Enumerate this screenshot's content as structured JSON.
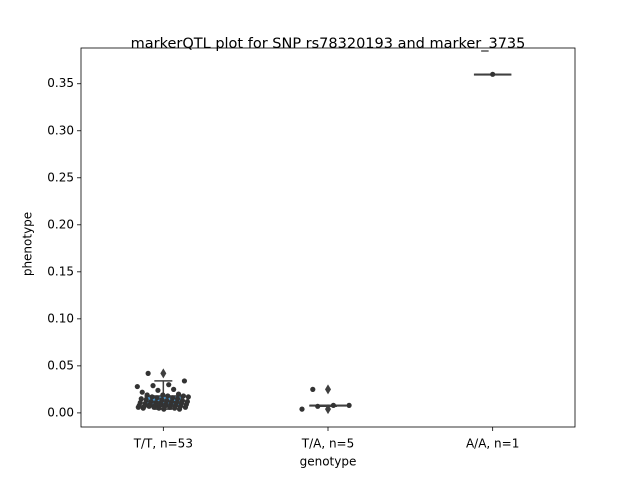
{
  "chart_data": {
    "type": "box",
    "title": "markerQTL plot for SNP rs78320193 and marker_3735",
    "xlabel": "genotype",
    "ylabel": "phenotype",
    "categories": [
      "T/T, n=53",
      "T/A, n=5",
      "A/A, n=1"
    ],
    "ylim": [
      -0.015,
      0.388
    ],
    "yticks": [
      {
        "value": 0,
        "label": "0.00"
      },
      {
        "value": 0.05,
        "label": "0.05"
      },
      {
        "value": 0.1,
        "label": "0.10"
      },
      {
        "value": 0.15,
        "label": "0.15"
      },
      {
        "value": 0.2,
        "label": "0.20"
      },
      {
        "value": 0.25,
        "label": "0.25"
      },
      {
        "value": 0.3,
        "label": "0.30"
      },
      {
        "value": 0.35,
        "label": "0.35"
      }
    ],
    "boxes": [
      {
        "color": "#4a9bd4",
        "whislo": 0.004,
        "q1": 0.007,
        "median": 0.012,
        "q3": 0.018,
        "whishi": 0.034,
        "fliers": [
          0.042
        ]
      },
      {
        "color": "#e1812c",
        "whislo": 0.007,
        "q1": 0.008,
        "median": 0.008,
        "q3": 0.008,
        "whishi": 0.008,
        "fliers": [
          0.025,
          0.004
        ]
      },
      {
        "color": "#3a923a",
        "whislo": 0.36,
        "q1": 0.36,
        "median": 0.36,
        "q3": 0.36,
        "whishi": 0.36,
        "fliers": []
      }
    ],
    "points_color": "#333333",
    "points": [
      [
        0.042,
        0.034,
        0.03,
        0.029,
        0.028,
        0.025,
        0.024,
        0.022,
        0.02,
        0.019,
        0.019,
        0.018,
        0.018,
        0.017,
        0.017,
        0.016,
        0.016,
        0.015,
        0.015,
        0.014,
        0.014,
        0.013,
        0.013,
        0.012,
        0.012,
        0.012,
        0.011,
        0.011,
        0.011,
        0.01,
        0.01,
        0.01,
        0.009,
        0.009,
        0.009,
        0.009,
        0.008,
        0.008,
        0.008,
        0.008,
        0.007,
        0.007,
        0.007,
        0.007,
        0.006,
        0.006,
        0.006,
        0.006,
        0.005,
        0.005,
        0.005,
        0.004,
        0.004
      ],
      [
        0.025,
        0.008,
        0.008,
        0.007,
        0.004
      ],
      [
        0.36
      ]
    ]
  }
}
